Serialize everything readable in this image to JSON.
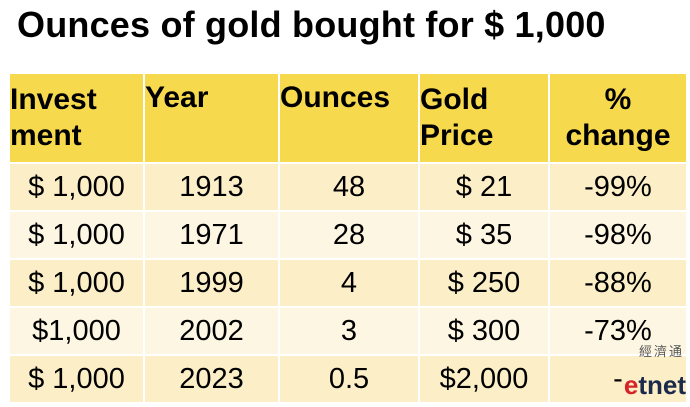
{
  "title": "Ounces of gold bought for $ 1,000",
  "table": {
    "headers": {
      "investment": [
        "Invest",
        "ment"
      ],
      "year": [
        "Year"
      ],
      "ounces": [
        "Ounces"
      ],
      "gold_price": [
        "Gold",
        "Price"
      ],
      "pct_change": [
        "%",
        "change"
      ]
    },
    "rows": [
      {
        "investment": "$ 1,000",
        "year": "1913",
        "ounces": "48",
        "gold_price": "$ 21",
        "pct_change": "-99%"
      },
      {
        "investment": "$ 1,000",
        "year": "1971",
        "ounces": "28",
        "gold_price": "$ 35",
        "pct_change": "-98%"
      },
      {
        "investment": "$ 1,000",
        "year": "1999",
        "ounces": "4",
        "gold_price": "$ 250",
        "pct_change": "-88%"
      },
      {
        "investment": "$1,000",
        "year": "2002",
        "ounces": "3",
        "gold_price": "$ 300",
        "pct_change": "-73%"
      },
      {
        "investment": "$ 1,000",
        "year": "2023",
        "ounces": "0.5",
        "gold_price": "$2,000",
        "pct_change": "-"
      }
    ]
  },
  "watermark": {
    "chinese": "經濟通",
    "logo_e": "e",
    "logo_rest": "tnet"
  },
  "colors": {
    "header_bg": "#f7d94e",
    "row_dark": "#fcefc8",
    "row_light": "#fdf6e3",
    "logo_red": "#d6232a",
    "logo_navy": "#1b2a4a"
  }
}
